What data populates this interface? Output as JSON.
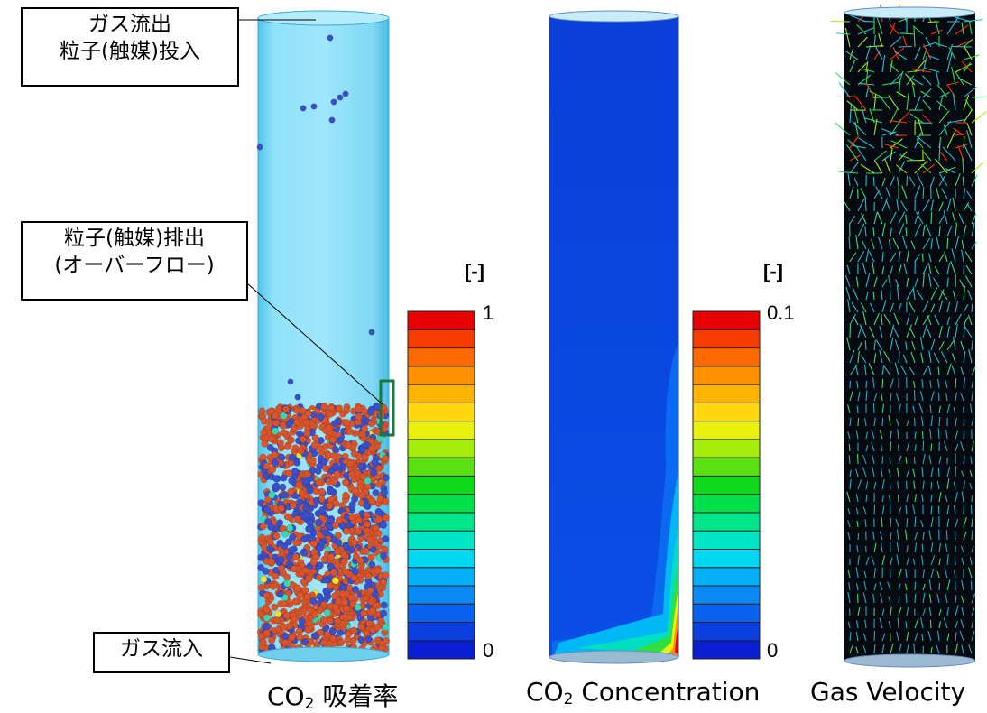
{
  "callouts": {
    "gas_out_line1": "ガス流出",
    "gas_out_line2": "粒子(触媒)投入",
    "particle_out_line1": "粒子(触媒)排出",
    "particle_out_line2": "(オーバーフロー)",
    "gas_in": "ガス流入"
  },
  "panels": {
    "adsorption": {
      "caption_prefix": "CO",
      "caption_sub": "2",
      "caption_suffix": " 吸着率",
      "scale_unit": "[-]",
      "scale_max": "1",
      "scale_min": "0"
    },
    "concentration": {
      "caption_prefix": "CO",
      "caption_sub": "2",
      "caption_suffix": " Concentration",
      "scale_unit": "[-]",
      "scale_max": "0.1",
      "scale_min": "0"
    },
    "velocity": {
      "caption": "Gas Velocity"
    }
  },
  "colormap": [
    "#0a1ed2",
    "#0a3fe0",
    "#0a63ee",
    "#0a8af5",
    "#06b0f7",
    "#00d8f2",
    "#00e6c4",
    "#00e58a",
    "#00e04a",
    "#10d81a",
    "#5ae010",
    "#a6ec0a",
    "#e8f010",
    "#ffd810",
    "#ffb400",
    "#ff9000",
    "#ff6a00",
    "#f53c00",
    "#e80000"
  ],
  "colors": {
    "column_fill": "#7fdcf7",
    "particle_orange": "#d9532b",
    "particle_blue": "#3a4fc8",
    "concentration_bg": "#0a4fe0",
    "velocity_bg": "#050a10",
    "overflow_box": "#1a7a3a"
  }
}
